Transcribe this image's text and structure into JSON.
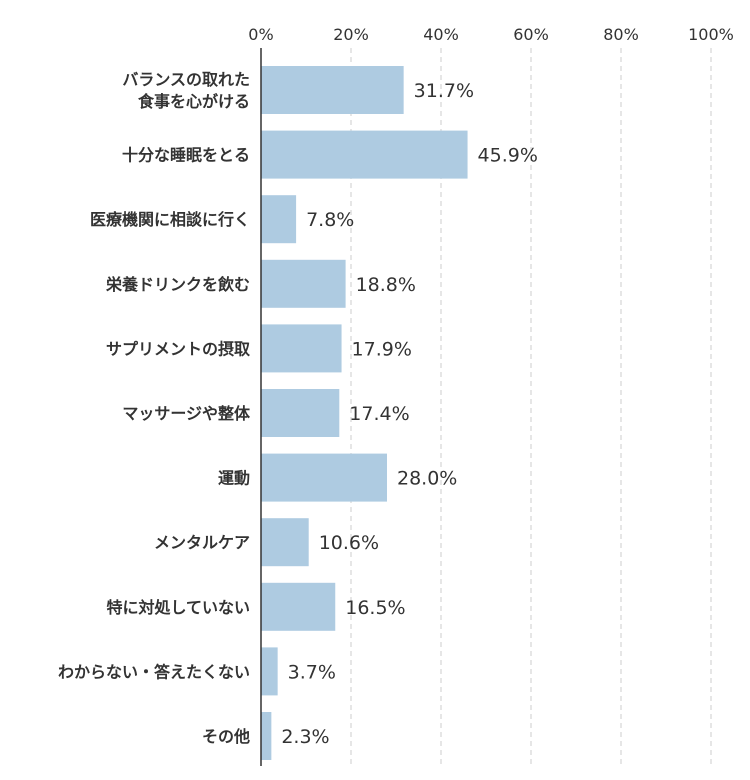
{
  "chart_data": {
    "type": "bar",
    "orientation": "horizontal",
    "title": "",
    "xlabel": "",
    "ylabel": "",
    "xlim": [
      0,
      100
    ],
    "x_ticks": [
      0,
      20,
      40,
      60,
      80,
      100
    ],
    "x_tick_labels": [
      "0%",
      "20%",
      "40%",
      "60%",
      "80%",
      "100%"
    ],
    "x_axis_position": "top",
    "grid": "vertical dashed",
    "legend": "none",
    "bar_color": "#aecbe1",
    "categories": [
      [
        "バランスの取れた",
        "食事を心がける"
      ],
      [
        "十分な睡眠をとる"
      ],
      [
        "医療機関に相談に行く"
      ],
      [
        "栄養ドリンクを飲む"
      ],
      [
        "サプリメントの摂取"
      ],
      [
        "マッサージや整体"
      ],
      [
        "運動"
      ],
      [
        "メンタルケア"
      ],
      [
        "特に対処していない"
      ],
      [
        "わからない・答えたくない"
      ],
      [
        "その他"
      ]
    ],
    "values": [
      31.7,
      45.9,
      7.8,
      18.8,
      17.9,
      17.4,
      28.0,
      10.6,
      16.5,
      3.7,
      2.3
    ],
    "value_labels": [
      "31.7%",
      "45.9%",
      "7.8%",
      "18.8%",
      "17.9%",
      "17.4%",
      "28.0%",
      "10.6%",
      "16.5%",
      "3.7%",
      "2.3%"
    ]
  }
}
